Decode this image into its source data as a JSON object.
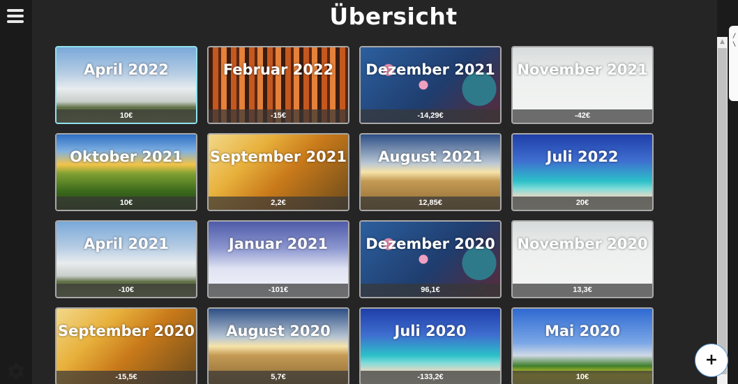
{
  "header": {
    "title": "Übersicht"
  },
  "sidebar": {
    "menu_icon": "hamburger-menu-icon",
    "settings_icon": "gear-icon"
  },
  "cards": [
    {
      "month": "April 2022",
      "amount": "10€",
      "image": "spring",
      "selected": true
    },
    {
      "month": "Februar 2022",
      "amount": "-15€",
      "image": "forest"
    },
    {
      "month": "Dezember 2021",
      "amount": "-14,29€",
      "image": "xmas"
    },
    {
      "month": "November 2021",
      "amount": "-42€",
      "image": "fog"
    },
    {
      "month": "Oktober 2021",
      "amount": "10€",
      "image": "corn"
    },
    {
      "month": "September 2021",
      "amount": "2,2€",
      "image": "autumn"
    },
    {
      "month": "August 2021",
      "amount": "12,85€",
      "image": "field"
    },
    {
      "month": "Juli 2022",
      "amount": "20€",
      "image": "beach"
    },
    {
      "month": "April 2021",
      "amount": "-10€",
      "image": "spring"
    },
    {
      "month": "Januar 2021",
      "amount": "-101€",
      "image": "winter"
    },
    {
      "month": "Dezember 2020",
      "amount": "96,1€",
      "image": "xmas"
    },
    {
      "month": "November 2020",
      "amount": "13,3€",
      "image": "fog"
    },
    {
      "month": "September 2020",
      "amount": "-15,5€",
      "image": "autumn"
    },
    {
      "month": "August 2020",
      "amount": "5,7€",
      "image": "field"
    },
    {
      "month": "Juli 2020",
      "amount": "-133,2€",
      "image": "beach"
    },
    {
      "month": "Mai 2020",
      "amount": "10€",
      "image": "meadow"
    }
  ],
  "fab": {
    "label": "+"
  },
  "popup": {
    "line1": "/",
    "line2": "\\"
  }
}
